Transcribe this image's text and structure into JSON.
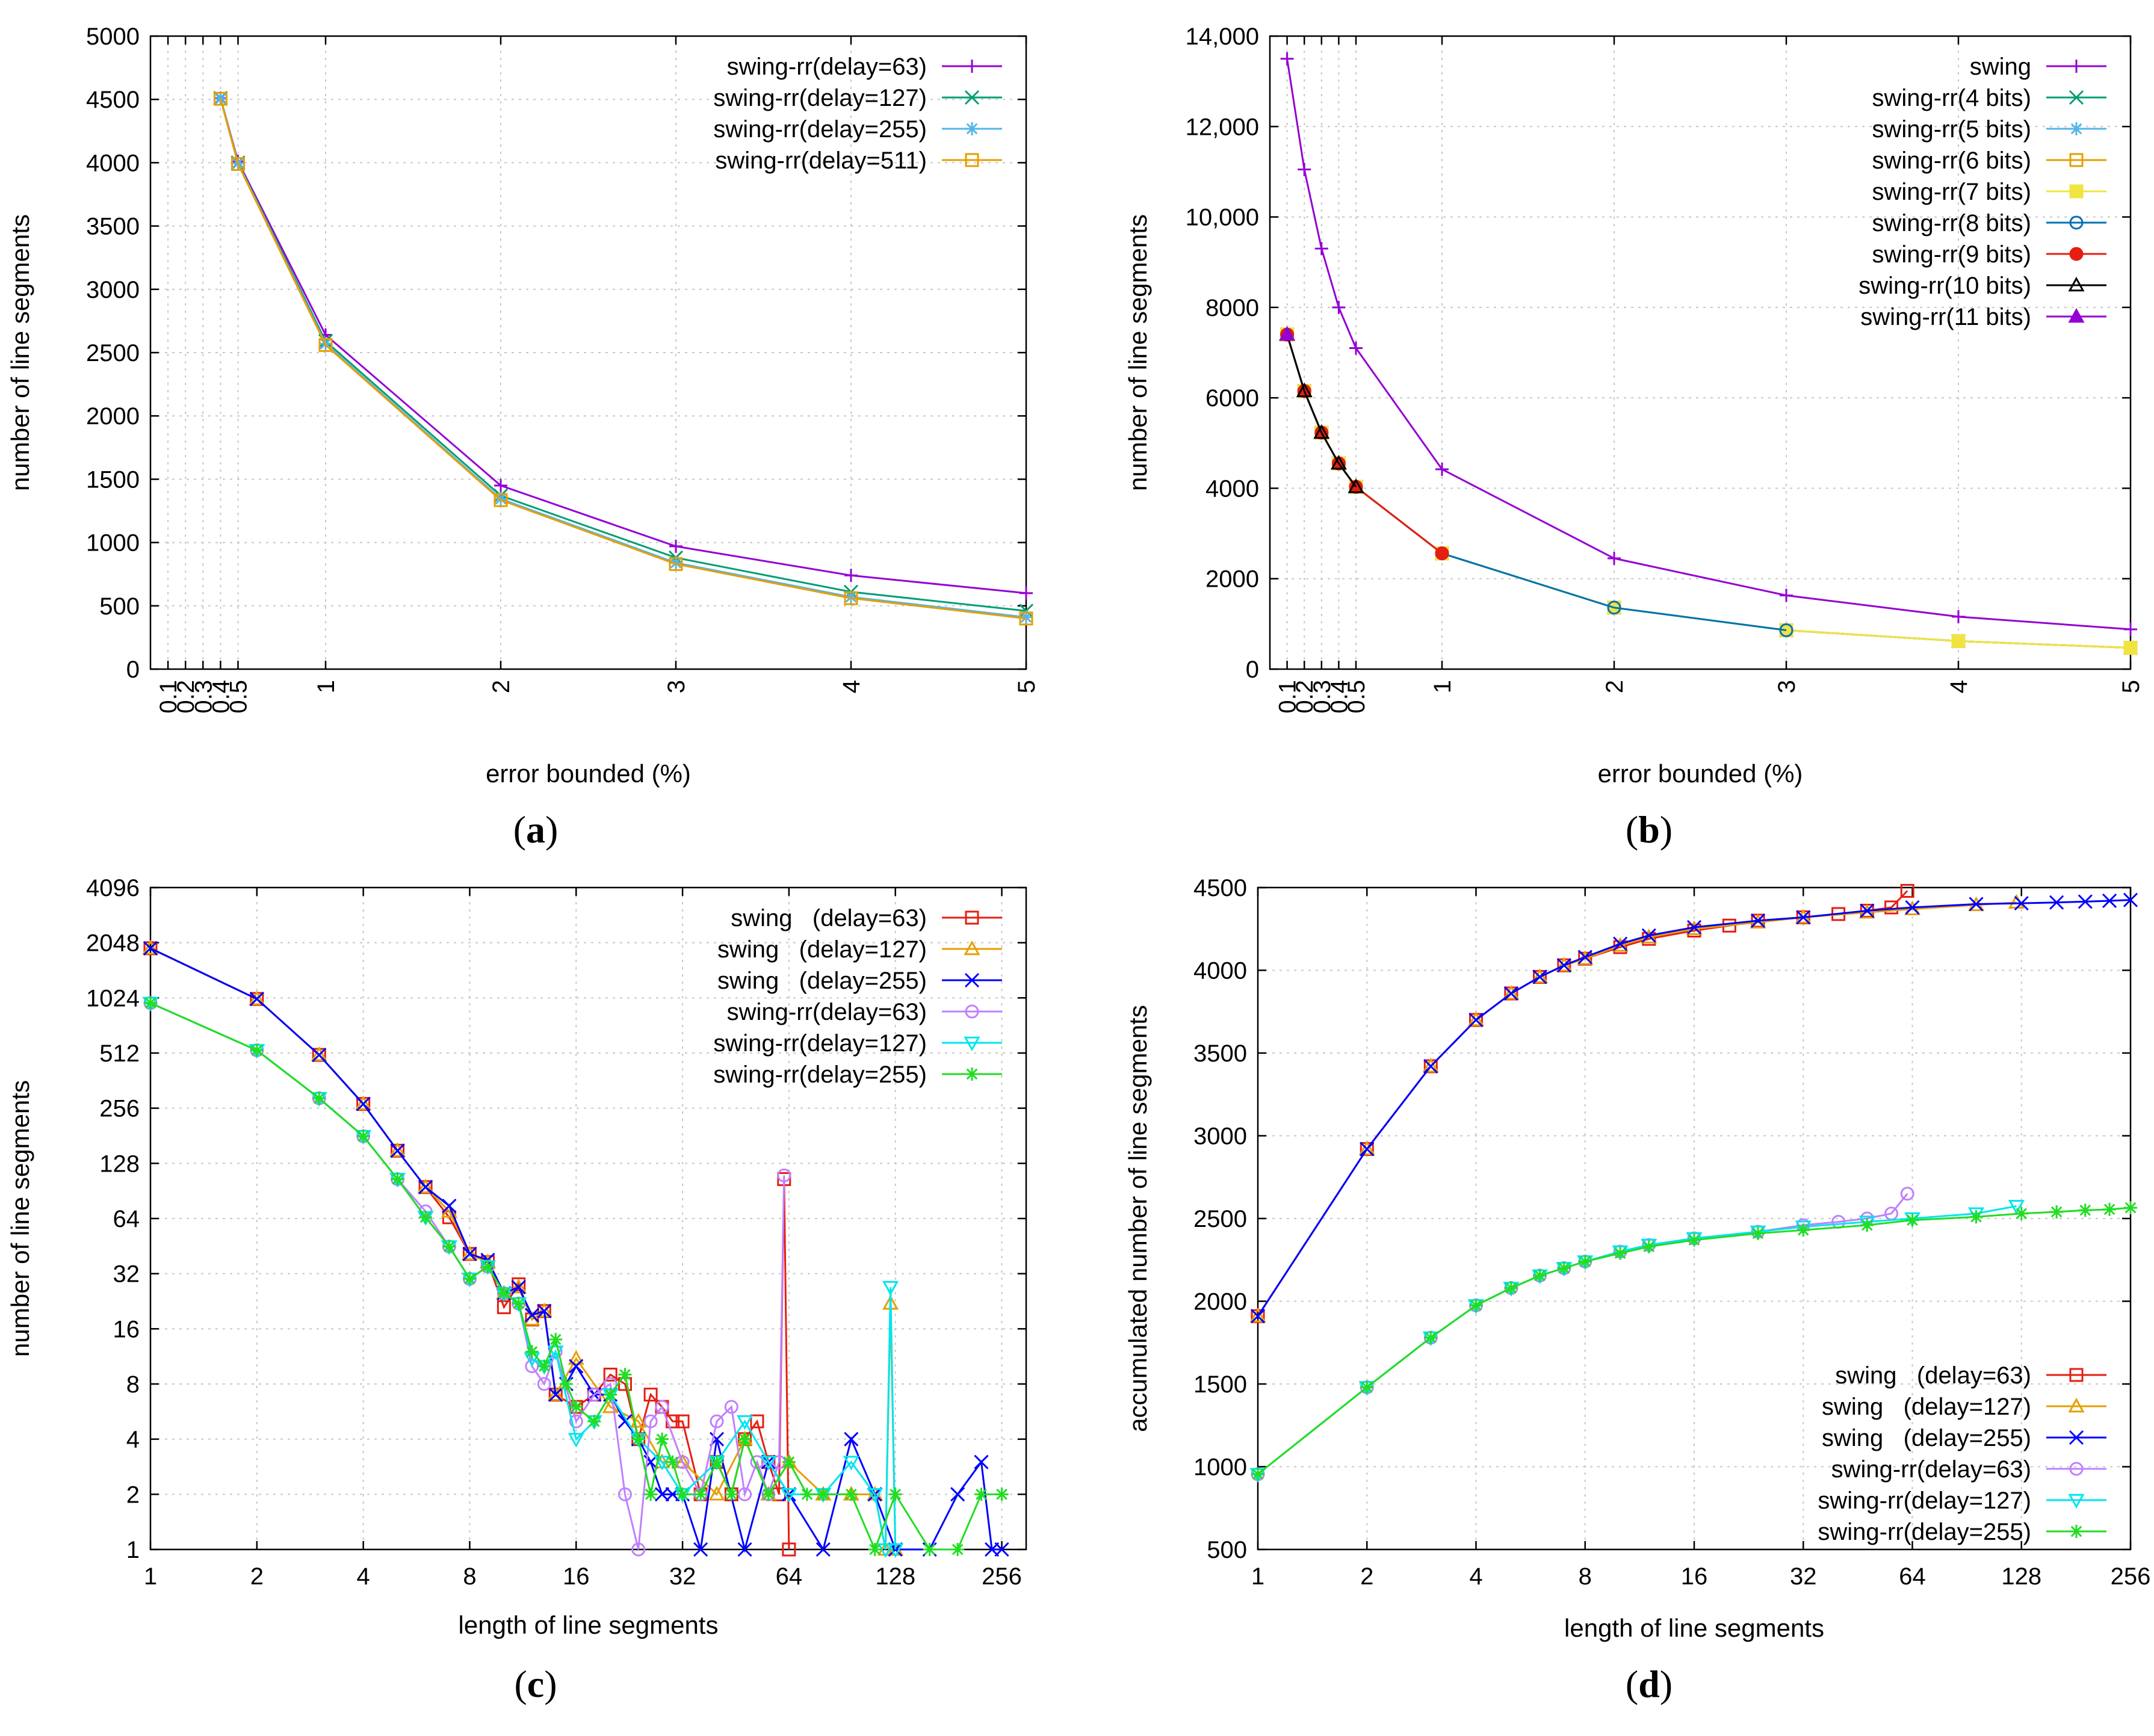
{
  "chart_data": [
    {
      "id": "a",
      "type": "line",
      "caption": "a",
      "xlabel": "error bounded (%)",
      "ylabel": "number of line segments",
      "xticks": [
        "0.1",
        "0.2",
        "0.3",
        "0.4",
        "0.5",
        "1",
        "2",
        "3",
        "4",
        "5"
      ],
      "yticks": [
        "0",
        "500",
        "1000",
        "1500",
        "2000",
        "2500",
        "3000",
        "3500",
        "4000",
        "4500",
        "5000"
      ],
      "xlim": [
        0,
        5
      ],
      "ylim": [
        0,
        5000
      ],
      "legend_position": "top-right",
      "x": [
        0.4,
        0.5,
        1,
        2,
        3,
        4,
        5
      ],
      "series": [
        {
          "name": "swing-rr(delay=63)",
          "color": "#9400d3",
          "marker": "plus",
          "values": [
            4510,
            4010,
            2640,
            1450,
            970,
            740,
            600
          ]
        },
        {
          "name": "swing-rr(delay=127)",
          "color": "#009e73",
          "marker": "x",
          "values": [
            4510,
            4000,
            2590,
            1370,
            880,
            610,
            460
          ]
        },
        {
          "name": "swing-rr(delay=255)",
          "color": "#56b4e9",
          "marker": "star",
          "values": [
            4505,
            3995,
            2570,
            1345,
            840,
            570,
            410
          ]
        },
        {
          "name": "swing-rr(delay=511)",
          "color": "#e69f00",
          "marker": "square",
          "values": [
            4505,
            3990,
            2560,
            1335,
            830,
            560,
            400
          ]
        }
      ]
    },
    {
      "id": "b",
      "type": "line",
      "caption": "b",
      "xlabel": "error bounded (%)",
      "ylabel": "number of line segments",
      "xticks": [
        "0.1",
        "0.2",
        "0.3",
        "0.4",
        "0.5",
        "1",
        "2",
        "3",
        "4",
        "5"
      ],
      "yticks": [
        "0",
        "2000",
        "4000",
        "6000",
        "8000",
        "10,000",
        "12,000",
        "14,000"
      ],
      "xlim": [
        0,
        5
      ],
      "ylim": [
        0,
        14000
      ],
      "legend_position": "top-right",
      "x": [
        0.1,
        0.2,
        0.3,
        0.4,
        0.5,
        1,
        2,
        3,
        4,
        5
      ],
      "series": [
        {
          "name": "swing",
          "color": "#9400d3",
          "marker": "plus",
          "values": [
            13500,
            11050,
            9300,
            8000,
            7100,
            4420,
            2450,
            1630,
            1160,
            880
          ]
        },
        {
          "name": "swing-rr(4 bits)",
          "color": "#009e73",
          "marker": "x",
          "values": [
            7400,
            6150,
            5230,
            4550,
            4030,
            2560,
            1360,
            860,
            620,
            470
          ]
        },
        {
          "name": "swing-rr(5 bits)",
          "color": "#56b4e9",
          "marker": "star",
          "values": [
            7400,
            6150,
            5230,
            4550,
            4030,
            2560,
            1360,
            860,
            620,
            470
          ]
        },
        {
          "name": "swing-rr(6 bits)",
          "color": "#e69f00",
          "marker": "square",
          "values": [
            7400,
            6150,
            5230,
            4550,
            4030,
            2560,
            1360,
            860,
            620,
            470
          ]
        },
        {
          "name": "swing-rr(7 bits)",
          "color": "#f0e442",
          "marker": "filled-square",
          "values": [
            7400,
            6150,
            5230,
            4550,
            4030,
            2560,
            1360,
            860,
            620,
            470
          ]
        },
        {
          "name": "swing-rr(8 bits)",
          "color": "#0072b2",
          "marker": "circle",
          "values": [
            7400,
            6150,
            5230,
            4550,
            4030,
            2560,
            1360,
            860,
            null,
            null
          ]
        },
        {
          "name": "swing-rr(9 bits)",
          "color": "#e51e10",
          "marker": "filled-circle",
          "values": [
            7400,
            6150,
            5230,
            4550,
            4030,
            2560,
            null,
            null,
            null,
            null
          ]
        },
        {
          "name": "swing-rr(10 bits)",
          "color": "#000000",
          "marker": "triangle",
          "values": [
            7400,
            6150,
            5230,
            4550,
            4030,
            null,
            null,
            null,
            null,
            null
          ]
        },
        {
          "name": "swing-rr(11 bits)",
          "color": "#9400d3",
          "marker": "filled-triangle",
          "values": [
            7400,
            null,
            null,
            null,
            null,
            null,
            null,
            null,
            null,
            null
          ]
        }
      ]
    },
    {
      "id": "c",
      "type": "line",
      "caption": "c",
      "xlabel": "length of line segments",
      "ylabel": "number of line segments",
      "xscale": "log2",
      "yscale": "log2",
      "xticks": [
        "1",
        "2",
        "4",
        "8",
        "16",
        "32",
        "64",
        "128",
        "256"
      ],
      "yticks": [
        "1",
        "2",
        "4",
        "8",
        "16",
        "32",
        "64",
        "128",
        "256",
        "512",
        "1024",
        "2048",
        "4096"
      ],
      "xlim": [
        1,
        300
      ],
      "ylim": [
        1,
        4096
      ],
      "legend_position": "top-right",
      "series": [
        {
          "name": "swing   (delay=63)",
          "color": "#e51e10",
          "marker": "square",
          "x": [
            1,
            2,
            3,
            4,
            5,
            6,
            7,
            8,
            9,
            10,
            11,
            12,
            13,
            14,
            16,
            18,
            20,
            22,
            24,
            26,
            28,
            30,
            32,
            36,
            40,
            44,
            48,
            52,
            56,
            60,
            62,
            64
          ],
          "values": [
            1910,
            1010,
            500,
            270,
            150,
            95,
            65,
            41,
            37,
            21,
            28,
            18,
            20,
            7,
            6,
            7,
            9,
            8,
            4,
            7,
            6,
            5,
            5,
            2,
            3,
            2,
            4,
            5,
            3,
            2,
            105,
            1
          ]
        },
        {
          "name": "swing   (delay=127)",
          "color": "#e69f00",
          "marker": "triangle",
          "x": [
            1,
            2,
            3,
            4,
            5,
            6,
            7,
            8,
            9,
            10,
            11,
            12,
            13,
            14,
            16,
            20,
            24,
            28,
            32,
            40,
            48,
            56,
            64,
            80,
            96,
            112,
            120,
            124,
            128
          ],
          "values": [
            1910,
            1010,
            500,
            270,
            150,
            95,
            70,
            41,
            37,
            25,
            27,
            18,
            20,
            7,
            11,
            6,
            5,
            3,
            3,
            2,
            4,
            2,
            3,
            2,
            2,
            2,
            1,
            22,
            1
          ]
        },
        {
          "name": "swing   (delay=255)",
          "color": "#0000ff",
          "marker": "x",
          "x": [
            1,
            2,
            3,
            4,
            5,
            6,
            7,
            8,
            9,
            10,
            11,
            12,
            13,
            14,
            15,
            16,
            18,
            20,
            22,
            24,
            26,
            28,
            30,
            32,
            36,
            40,
            48,
            56,
            64,
            80,
            96,
            112,
            128,
            160,
            192,
            224,
            240,
            256
          ],
          "values": [
            1910,
            1010,
            500,
            270,
            150,
            95,
            75,
            41,
            38,
            25,
            27,
            19,
            20,
            7,
            8,
            10,
            7,
            7,
            5,
            4,
            3,
            2,
            2,
            2,
            1,
            4,
            1,
            3,
            2,
            1,
            4,
            2,
            1,
            1,
            2,
            3,
            1,
            1
          ]
        },
        {
          "name": "swing-rr(delay=63)",
          "color": "#c080ff",
          "marker": "circle",
          "x": [
            1,
            2,
            3,
            4,
            5,
            6,
            7,
            8,
            9,
            10,
            11,
            12,
            13,
            14,
            16,
            18,
            20,
            22,
            24,
            26,
            28,
            32,
            36,
            40,
            44,
            48,
            52,
            56,
            60,
            62
          ],
          "values": [
            960,
            530,
            290,
            180,
            105,
            70,
            45,
            30,
            35,
            25,
            22,
            10,
            8,
            12,
            5,
            7,
            8,
            2,
            1,
            5,
            6,
            3,
            2,
            5,
            6,
            2,
            3,
            2,
            3,
            110
          ]
        },
        {
          "name": "swing-rr(delay=127)",
          "color": "#00e5ee",
          "marker": "triangle-down",
          "x": [
            1,
            2,
            3,
            4,
            5,
            6,
            7,
            8,
            9,
            10,
            11,
            12,
            13,
            14,
            16,
            18,
            20,
            24,
            28,
            32,
            40,
            48,
            56,
            64,
            80,
            96,
            112,
            120,
            124,
            128
          ],
          "values": [
            960,
            530,
            290,
            180,
            105,
            65,
            45,
            30,
            35,
            25,
            22,
            11,
            10,
            12,
            4,
            5,
            7,
            4,
            3,
            2,
            3,
            5,
            3,
            2,
            2,
            3,
            2,
            1,
            27,
            1
          ]
        },
        {
          "name": "swing-rr(delay=255)",
          "color": "#22dd22",
          "marker": "star",
          "x": [
            1,
            2,
            3,
            4,
            5,
            6,
            7,
            8,
            9,
            10,
            11,
            12,
            13,
            14,
            15,
            16,
            18,
            20,
            22,
            24,
            26,
            28,
            30,
            32,
            36,
            40,
            44,
            48,
            56,
            64,
            72,
            80,
            96,
            112,
            128,
            160,
            192,
            224,
            256
          ],
          "values": [
            960,
            530,
            290,
            180,
            105,
            65,
            45,
            30,
            35,
            25,
            22,
            12,
            10,
            14,
            8,
            6,
            5,
            7,
            9,
            4,
            2,
            4,
            3,
            2,
            2,
            3,
            2,
            4,
            2,
            3,
            2,
            2,
            2,
            1,
            2,
            1,
            1,
            2,
            2
          ]
        }
      ]
    },
    {
      "id": "d",
      "type": "line",
      "caption": "d",
      "xlabel": "length of line segments",
      "ylabel": "accumulated number of line segments",
      "xscale": "log2",
      "xticks": [
        "1",
        "2",
        "4",
        "8",
        "16",
        "32",
        "64",
        "128",
        "256"
      ],
      "yticks": [
        "500",
        "1000",
        "1500",
        "2000",
        "2500",
        "3000",
        "3500",
        "4000",
        "4500"
      ],
      "xlim": [
        1,
        256
      ],
      "ylim": [
        500,
        4500
      ],
      "legend_position": "bottom-right",
      "series": [
        {
          "name": "swing   (delay=63)",
          "color": "#e51e10",
          "marker": "square",
          "x": [
            1,
            2,
            3,
            4,
            5,
            6,
            7,
            8,
            10,
            12,
            16,
            20,
            24,
            32,
            40,
            48,
            56,
            62
          ],
          "values": [
            1910,
            2920,
            3420,
            3700,
            3860,
            3960,
            4030,
            4070,
            4140,
            4190,
            4240,
            4270,
            4300,
            4320,
            4340,
            4360,
            4380,
            4480
          ]
        },
        {
          "name": "swing   (delay=127)",
          "color": "#e69f00",
          "marker": "triangle",
          "x": [
            1,
            2,
            3,
            4,
            5,
            6,
            7,
            8,
            10,
            12,
            16,
            24,
            32,
            48,
            64,
            96,
            124
          ],
          "values": [
            1910,
            2920,
            3420,
            3700,
            3860,
            3960,
            4030,
            4070,
            4150,
            4200,
            4250,
            4290,
            4320,
            4350,
            4370,
            4395,
            4410
          ]
        },
        {
          "name": "swing   (delay=255)",
          "color": "#0000ff",
          "marker": "x",
          "x": [
            1,
            2,
            3,
            4,
            5,
            6,
            7,
            8,
            10,
            12,
            16,
            24,
            32,
            48,
            64,
            96,
            128,
            160,
            192,
            224,
            256
          ],
          "values": [
            1910,
            2920,
            3420,
            3700,
            3860,
            3960,
            4030,
            4080,
            4160,
            4210,
            4260,
            4300,
            4320,
            4360,
            4380,
            4400,
            4405,
            4410,
            4415,
            4420,
            4425
          ]
        },
        {
          "name": "swing-rr(delay=63)",
          "color": "#c080ff",
          "marker": "circle",
          "x": [
            1,
            2,
            3,
            4,
            5,
            6,
            7,
            8,
            10,
            12,
            16,
            24,
            32,
            40,
            48,
            56,
            62
          ],
          "values": [
            955,
            1480,
            1780,
            1975,
            2080,
            2155,
            2200,
            2240,
            2300,
            2340,
            2380,
            2420,
            2460,
            2480,
            2500,
            2530,
            2650
          ]
        },
        {
          "name": "swing-rr(delay=127)",
          "color": "#00e5ee",
          "marker": "triangle-down",
          "x": [
            1,
            2,
            3,
            4,
            5,
            6,
            7,
            8,
            10,
            12,
            16,
            24,
            32,
            48,
            64,
            96,
            124
          ],
          "values": [
            955,
            1480,
            1780,
            1975,
            2080,
            2155,
            2200,
            2240,
            2300,
            2340,
            2380,
            2420,
            2450,
            2480,
            2500,
            2530,
            2575
          ]
        },
        {
          "name": "swing-rr(delay=255)",
          "color": "#22dd22",
          "marker": "star",
          "x": [
            1,
            2,
            3,
            4,
            5,
            6,
            7,
            8,
            10,
            12,
            16,
            24,
            32,
            48,
            64,
            96,
            128,
            160,
            192,
            224,
            256
          ],
          "values": [
            955,
            1480,
            1780,
            1975,
            2080,
            2155,
            2200,
            2240,
            2290,
            2330,
            2370,
            2410,
            2430,
            2460,
            2490,
            2510,
            2530,
            2540,
            2550,
            2555,
            2565
          ]
        }
      ]
    }
  ]
}
